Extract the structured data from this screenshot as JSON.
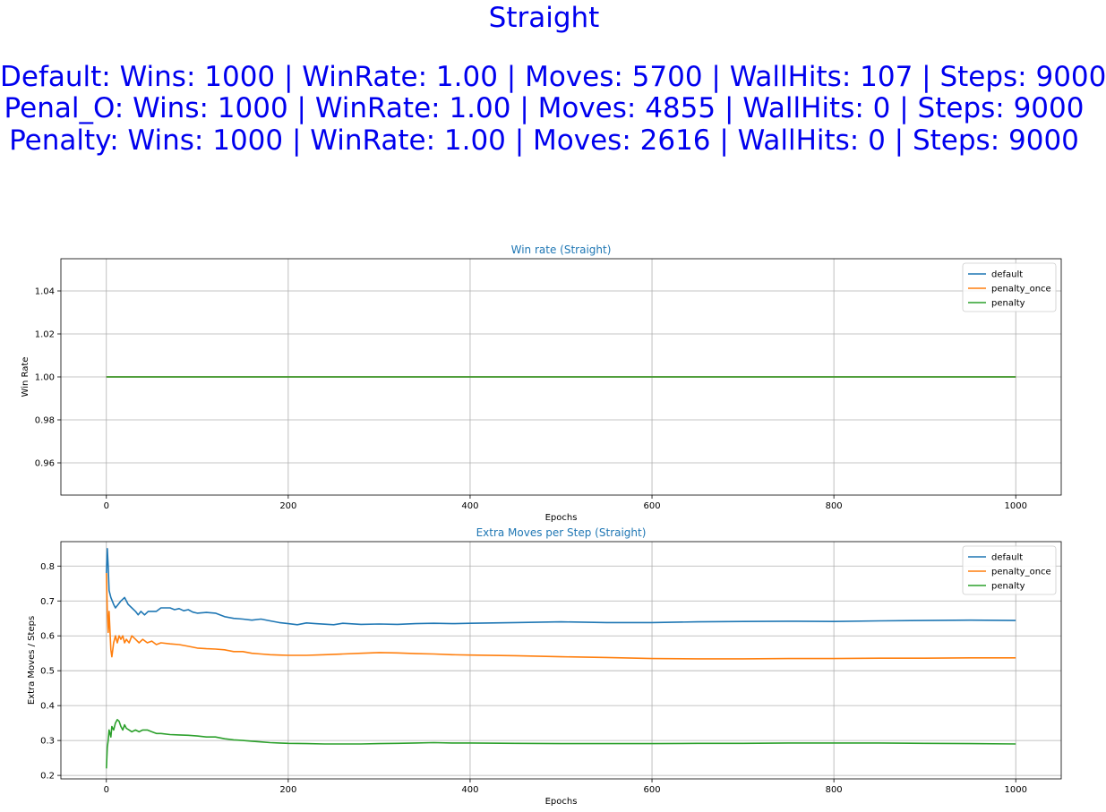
{
  "suptitle": {
    "title": "Straight",
    "lines": [
      "Default: Wins: 1000 | WinRate: 1.00 | Moves: 5700 | WallHits: 107 | Steps: 9000",
      "Penal_O: Wins: 1000 | WinRate: 1.00 | Moves: 4855 | WallHits: 0 | Steps: 9000",
      "Penalty: Wins: 1000 | WinRate: 1.00 | Moves: 2616 | WallHits: 0 | Steps: 9000"
    ],
    "color": "#0000ee"
  },
  "chart_data": [
    {
      "type": "line",
      "title": "Win rate (Straight)",
      "xlabel": "Epochs",
      "ylabel": "Win Rate",
      "xlim": [
        -50,
        1050
      ],
      "ylim": [
        0.945,
        1.055
      ],
      "xticks": [
        0,
        200,
        400,
        600,
        800,
        1000
      ],
      "yticks": [
        0.96,
        0.98,
        1.0,
        1.02,
        1.04
      ],
      "ytick_labels": [
        "0.96",
        "0.98",
        "1.00",
        "1.02",
        "1.04"
      ],
      "grid": true,
      "legend_position": "top-right",
      "series": [
        {
          "name": "default",
          "color": "#1f77b4",
          "points": [
            [
              0,
              1.0
            ],
            [
              1000,
              1.0
            ]
          ]
        },
        {
          "name": "penalty_once",
          "color": "#ff7f0e",
          "points": [
            [
              0,
              1.0
            ],
            [
              1000,
              1.0
            ]
          ]
        },
        {
          "name": "penalty",
          "color": "#2ca02c",
          "points": [
            [
              0,
              1.0
            ],
            [
              1000,
              1.0
            ]
          ]
        }
      ]
    },
    {
      "type": "line",
      "title": "Extra Moves per Step (Straight)",
      "xlabel": "Epochs",
      "ylabel": "Extra Moves / Steps",
      "xlim": [
        -50,
        1050
      ],
      "ylim": [
        0.19,
        0.87
      ],
      "xticks": [
        0,
        200,
        400,
        600,
        800,
        1000
      ],
      "yticks": [
        0.2,
        0.3,
        0.4,
        0.5,
        0.6,
        0.7,
        0.8
      ],
      "ytick_labels": [
        "0.2",
        "0.3",
        "0.4",
        "0.5",
        "0.6",
        "0.7",
        "0.8"
      ],
      "grid": true,
      "legend_position": "top-right",
      "series": [
        {
          "name": "default",
          "color": "#1f77b4",
          "points": [
            [
              0,
              0.78
            ],
            [
              1,
              0.85
            ],
            [
              2,
              0.8
            ],
            [
              3,
              0.73
            ],
            [
              5,
              0.71
            ],
            [
              8,
              0.69
            ],
            [
              10,
              0.68
            ],
            [
              13,
              0.69
            ],
            [
              16,
              0.7
            ],
            [
              20,
              0.71
            ],
            [
              24,
              0.69
            ],
            [
              28,
              0.68
            ],
            [
              32,
              0.67
            ],
            [
              35,
              0.66
            ],
            [
              38,
              0.67
            ],
            [
              42,
              0.66
            ],
            [
              46,
              0.67
            ],
            [
              50,
              0.67
            ],
            [
              55,
              0.67
            ],
            [
              60,
              0.68
            ],
            [
              65,
              0.68
            ],
            [
              70,
              0.68
            ],
            [
              75,
              0.675
            ],
            [
              80,
              0.678
            ],
            [
              85,
              0.672
            ],
            [
              90,
              0.675
            ],
            [
              95,
              0.668
            ],
            [
              100,
              0.665
            ],
            [
              110,
              0.667
            ],
            [
              120,
              0.665
            ],
            [
              130,
              0.655
            ],
            [
              140,
              0.65
            ],
            [
              150,
              0.648
            ],
            [
              160,
              0.645
            ],
            [
              170,
              0.648
            ],
            [
              180,
              0.643
            ],
            [
              190,
              0.638
            ],
            [
              200,
              0.635
            ],
            [
              210,
              0.632
            ],
            [
              220,
              0.637
            ],
            [
              230,
              0.635
            ],
            [
              250,
              0.632
            ],
            [
              260,
              0.636
            ],
            [
              280,
              0.633
            ],
            [
              300,
              0.634
            ],
            [
              320,
              0.633
            ],
            [
              340,
              0.635
            ],
            [
              360,
              0.636
            ],
            [
              380,
              0.635
            ],
            [
              400,
              0.636
            ],
            [
              450,
              0.638
            ],
            [
              500,
              0.64
            ],
            [
              550,
              0.638
            ],
            [
              600,
              0.638
            ],
            [
              650,
              0.64
            ],
            [
              700,
              0.641
            ],
            [
              750,
              0.642
            ],
            [
              800,
              0.641
            ],
            [
              850,
              0.643
            ],
            [
              900,
              0.644
            ],
            [
              950,
              0.645
            ],
            [
              1000,
              0.644
            ]
          ]
        },
        {
          "name": "penalty_once",
          "color": "#ff7f0e",
          "points": [
            [
              0,
              0.78
            ],
            [
              1,
              0.67
            ],
            [
              2,
              0.61
            ],
            [
              3,
              0.67
            ],
            [
              5,
              0.56
            ],
            [
              6,
              0.54
            ],
            [
              8,
              0.58
            ],
            [
              10,
              0.6
            ],
            [
              12,
              0.58
            ],
            [
              14,
              0.6
            ],
            [
              16,
              0.59
            ],
            [
              18,
              0.6
            ],
            [
              20,
              0.58
            ],
            [
              22,
              0.59
            ],
            [
              25,
              0.58
            ],
            [
              28,
              0.6
            ],
            [
              32,
              0.59
            ],
            [
              36,
              0.58
            ],
            [
              40,
              0.59
            ],
            [
              45,
              0.58
            ],
            [
              50,
              0.585
            ],
            [
              55,
              0.575
            ],
            [
              60,
              0.58
            ],
            [
              70,
              0.577
            ],
            [
              80,
              0.575
            ],
            [
              90,
              0.57
            ],
            [
              100,
              0.565
            ],
            [
              110,
              0.563
            ],
            [
              120,
              0.562
            ],
            [
              130,
              0.56
            ],
            [
              140,
              0.555
            ],
            [
              150,
              0.555
            ],
            [
              160,
              0.55
            ],
            [
              170,
              0.548
            ],
            [
              180,
              0.546
            ],
            [
              190,
              0.545
            ],
            [
              200,
              0.544
            ],
            [
              220,
              0.544
            ],
            [
              240,
              0.546
            ],
            [
              260,
              0.548
            ],
            [
              280,
              0.55
            ],
            [
              300,
              0.552
            ],
            [
              320,
              0.551
            ],
            [
              340,
              0.549
            ],
            [
              360,
              0.548
            ],
            [
              380,
              0.546
            ],
            [
              400,
              0.545
            ],
            [
              450,
              0.543
            ],
            [
              500,
              0.54
            ],
            [
              550,
              0.538
            ],
            [
              600,
              0.535
            ],
            [
              650,
              0.534
            ],
            [
              700,
              0.534
            ],
            [
              750,
              0.535
            ],
            [
              800,
              0.535
            ],
            [
              850,
              0.536
            ],
            [
              900,
              0.536
            ],
            [
              950,
              0.537
            ],
            [
              1000,
              0.537
            ]
          ]
        },
        {
          "name": "penalty",
          "color": "#2ca02c",
          "points": [
            [
              0,
              0.22
            ],
            [
              1,
              0.28
            ],
            [
              2,
              0.3
            ],
            [
              3,
              0.33
            ],
            [
              5,
              0.31
            ],
            [
              6,
              0.34
            ],
            [
              8,
              0.33
            ],
            [
              10,
              0.35
            ],
            [
              12,
              0.36
            ],
            [
              14,
              0.355
            ],
            [
              16,
              0.34
            ],
            [
              18,
              0.33
            ],
            [
              20,
              0.345
            ],
            [
              22,
              0.335
            ],
            [
              25,
              0.33
            ],
            [
              28,
              0.325
            ],
            [
              32,
              0.33
            ],
            [
              36,
              0.325
            ],
            [
              40,
              0.33
            ],
            [
              45,
              0.33
            ],
            [
              50,
              0.325
            ],
            [
              55,
              0.32
            ],
            [
              60,
              0.32
            ],
            [
              70,
              0.317
            ],
            [
              80,
              0.316
            ],
            [
              90,
              0.315
            ],
            [
              100,
              0.313
            ],
            [
              110,
              0.31
            ],
            [
              120,
              0.31
            ],
            [
              130,
              0.305
            ],
            [
              140,
              0.302
            ],
            [
              150,
              0.3
            ],
            [
              160,
              0.298
            ],
            [
              170,
              0.296
            ],
            [
              180,
              0.294
            ],
            [
              190,
              0.293
            ],
            [
              200,
              0.292
            ],
            [
              220,
              0.291
            ],
            [
              240,
              0.29
            ],
            [
              260,
              0.29
            ],
            [
              280,
              0.29
            ],
            [
              300,
              0.291
            ],
            [
              320,
              0.292
            ],
            [
              340,
              0.293
            ],
            [
              360,
              0.294
            ],
            [
              380,
              0.293
            ],
            [
              400,
              0.293
            ],
            [
              450,
              0.292
            ],
            [
              500,
              0.291
            ],
            [
              550,
              0.291
            ],
            [
              600,
              0.291
            ],
            [
              650,
              0.292
            ],
            [
              700,
              0.292
            ],
            [
              750,
              0.293
            ],
            [
              800,
              0.293
            ],
            [
              850,
              0.293
            ],
            [
              900,
              0.292
            ],
            [
              950,
              0.291
            ],
            [
              1000,
              0.29
            ]
          ]
        }
      ]
    }
  ]
}
